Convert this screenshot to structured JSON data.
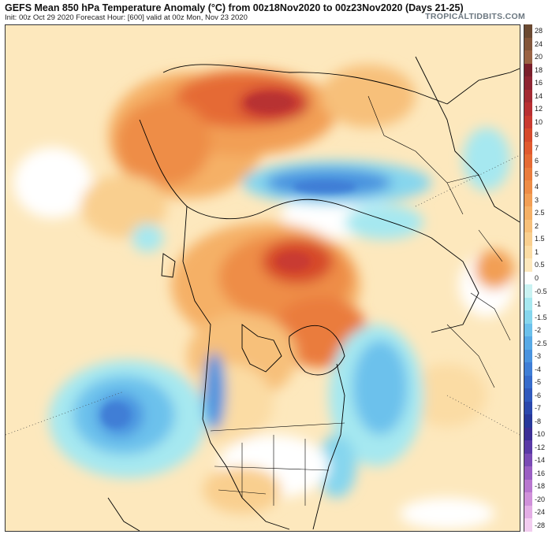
{
  "header": {
    "title": "GEFS Mean 850 hPa Temperature Anomaly (°C) from 00z18Nov2020 to 00z23Nov2020 (Days 21-25)",
    "subtitle": "Init: 00z Oct 29 2020   Forecast Hour: [600]   valid at 00z Mon, Nov 23 2020",
    "credit": "TROPICALTIDBITS.COM"
  },
  "map": {
    "projection": "polar-stereographic-north",
    "coastline_color": "#000000",
    "border_color": "#000000"
  },
  "colorbar": {
    "unit": "°C",
    "levels": [
      {
        "label": "28",
        "color": "#6b4a32"
      },
      {
        "label": "24",
        "color": "#83563a"
      },
      {
        "label": "20",
        "color": "#9a6344"
      },
      {
        "label": "18",
        "color": "#7a1f2b"
      },
      {
        "label": "16",
        "color": "#8e2432"
      },
      {
        "label": "14",
        "color": "#a32a33"
      },
      {
        "label": "12",
        "color": "#b83033"
      },
      {
        "label": "10",
        "color": "#c93a30"
      },
      {
        "label": "8",
        "color": "#d64a2c"
      },
      {
        "label": "7",
        "color": "#e05a2f"
      },
      {
        "label": "6",
        "color": "#e56b35"
      },
      {
        "label": "5",
        "color": "#ea7c3d"
      },
      {
        "label": "4",
        "color": "#ee8d47"
      },
      {
        "label": "3",
        "color": "#f29f55"
      },
      {
        "label": "2.5",
        "color": "#f5b066"
      },
      {
        "label": "2",
        "color": "#f7c07a"
      },
      {
        "label": "1.5",
        "color": "#f9cf8f"
      },
      {
        "label": "1",
        "color": "#fbdca4"
      },
      {
        "label": "0.5",
        "color": "#fde8bd"
      },
      {
        "label": "0",
        "color": "#ffffff"
      },
      {
        "label": "-0.5",
        "color": "#c9f2f2"
      },
      {
        "label": "-1",
        "color": "#a6e8f0"
      },
      {
        "label": "-1.5",
        "color": "#86d6ee"
      },
      {
        "label": "-2",
        "color": "#6cc1ec"
      },
      {
        "label": "-2.5",
        "color": "#58aae6"
      },
      {
        "label": "-3",
        "color": "#4a93df"
      },
      {
        "label": "-4",
        "color": "#3f7ed6"
      },
      {
        "label": "-5",
        "color": "#366bcb"
      },
      {
        "label": "-6",
        "color": "#2f59bd"
      },
      {
        "label": "-7",
        "color": "#2a48ad"
      },
      {
        "label": "-8",
        "color": "#27389b"
      },
      {
        "label": "-10",
        "color": "#3b2e96"
      },
      {
        "label": "-12",
        "color": "#5a3aa6"
      },
      {
        "label": "-14",
        "color": "#7a4bb5"
      },
      {
        "label": "-16",
        "color": "#9a5fc3"
      },
      {
        "label": "-18",
        "color": "#b877cf"
      },
      {
        "label": "-20",
        "color": "#d091da"
      },
      {
        "label": "-24",
        "color": "#e3aee5"
      },
      {
        "label": "-28",
        "color": "#f2cdf0"
      }
    ]
  }
}
